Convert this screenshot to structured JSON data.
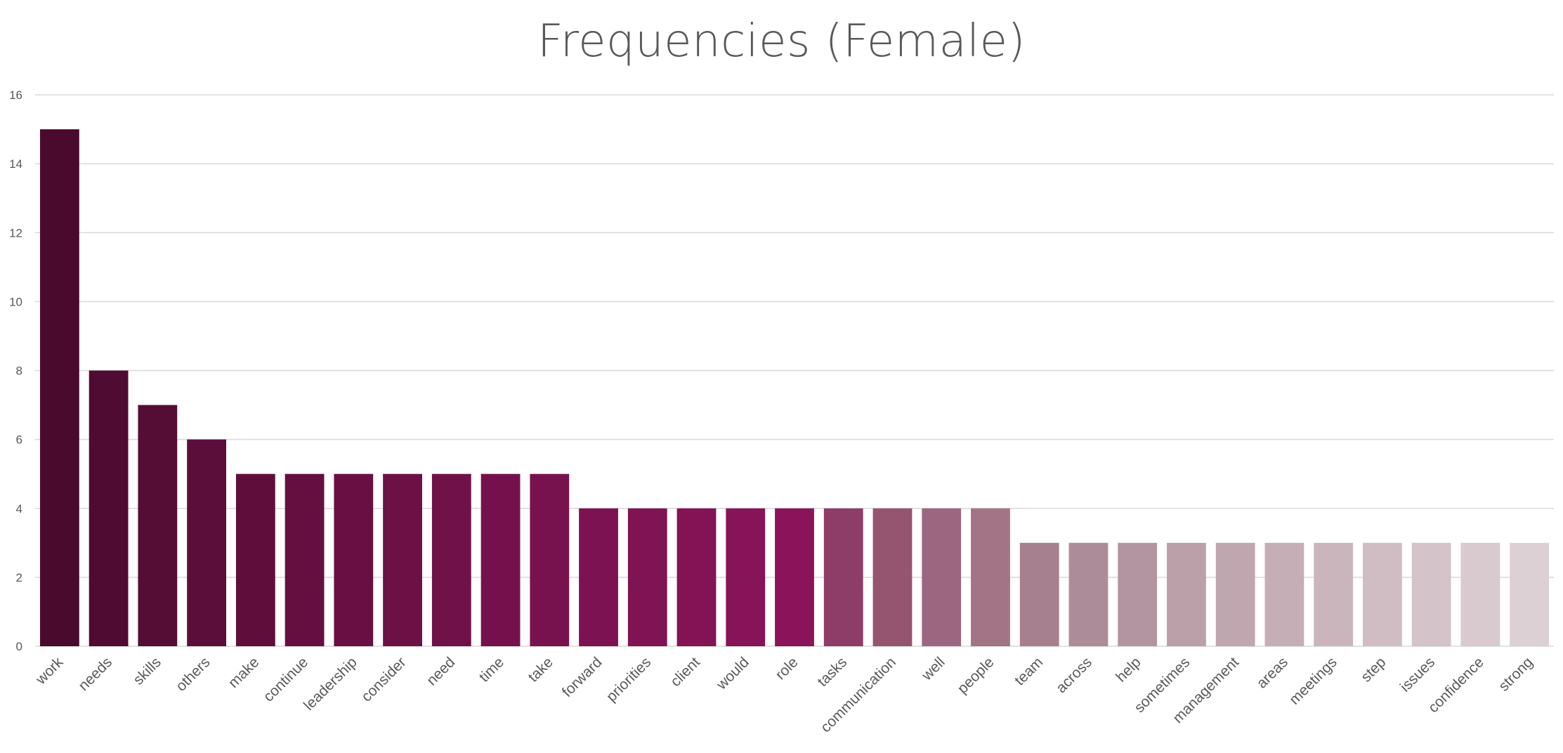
{
  "chart_data": {
    "type": "bar",
    "title": "Frequencies (Female)",
    "xlabel": "",
    "ylabel": "",
    "ylim": [
      0,
      16
    ],
    "yticks": [
      0,
      2,
      4,
      6,
      8,
      10,
      12,
      14,
      16
    ],
    "grid": true,
    "legend": "none",
    "categories": [
      "work",
      "needs",
      "skills",
      "others",
      "make",
      "continue",
      "leadership",
      "consider",
      "need",
      "time",
      "take",
      "forward",
      "priorities",
      "client",
      "would",
      "role",
      "tasks",
      "communication",
      "well",
      "people",
      "team",
      "across",
      "help",
      "sometimes",
      "management",
      "areas",
      "meetings",
      "step",
      "issues",
      "confidence",
      "strong"
    ],
    "values": [
      15,
      8,
      7,
      6,
      5,
      5,
      5,
      5,
      5,
      5,
      5,
      4,
      4,
      4,
      4,
      4,
      4,
      4,
      4,
      4,
      3,
      3,
      3,
      3,
      3,
      3,
      3,
      3,
      3,
      3,
      3
    ],
    "colors": [
      "#4a0a2e",
      "#500b32",
      "#550c35",
      "#5b0e39",
      "#5f0e3c",
      "#640f40",
      "#690f43",
      "#6c1046",
      "#701149",
      "#74114c",
      "#78124f",
      "#7c1252",
      "#801354",
      "#841356",
      "#871358",
      "#8a135a",
      "#8e3c68",
      "#955570",
      "#9c6680",
      "#a27486",
      "#a7808f",
      "#ad8c99",
      "#b395a1",
      "#bb9fa9",
      "#c0a6af",
      "#c5aeb6",
      "#cab5bd",
      "#d0bdc4",
      "#d4c3c9",
      "#d9cacf",
      "#ddd0d5"
    ]
  }
}
